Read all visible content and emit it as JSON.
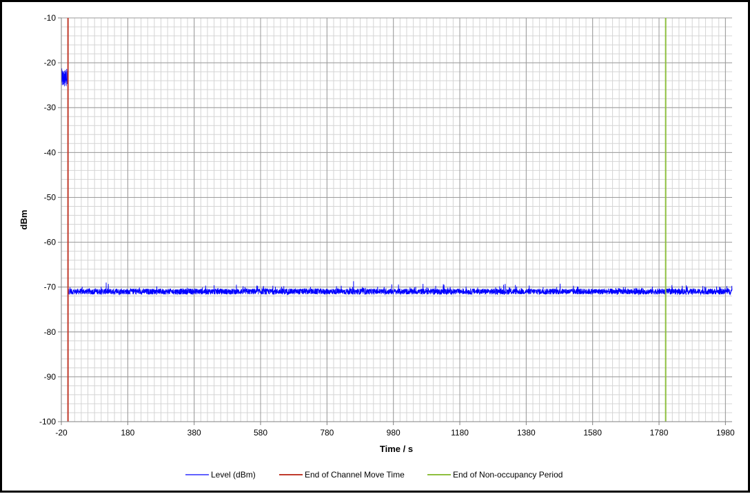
{
  "chart_data": {
    "type": "line",
    "xlabel": "Time / s",
    "ylabel": "dBm",
    "xlim": [
      -20,
      2000
    ],
    "ylim": [
      -100,
      -10
    ],
    "x_ticks": [
      -20,
      180,
      380,
      580,
      780,
      980,
      1180,
      1380,
      1580,
      1780,
      1980
    ],
    "y_ticks": [
      -10,
      -20,
      -30,
      -40,
      -50,
      -60,
      -70,
      -80,
      -90,
      -100
    ],
    "x_minor_step": 20,
    "y_minor_step": 2,
    "grid": true,
    "legend_position": "bottom",
    "series": [
      {
        "name": "Level (dBm)",
        "kind": "trace",
        "color": "#0000ff",
        "segments": [
          {
            "x": [
              -20,
              0
            ],
            "y_mean": -23.5,
            "y_min": -25.5,
            "y_max": -21.0
          },
          {
            "x": [
              0,
              2000
            ],
            "y_mean": -71.0,
            "y_min": -71.9,
            "y_max": -68.6,
            "peaks": [
              [
                115,
                -69.0
              ],
              [
                440,
                -69.6
              ],
              [
                650,
                -69.8
              ],
              [
                860,
                -68.7
              ],
              [
                975,
                -69.4
              ],
              [
                1130,
                -69.8
              ],
              [
                1760,
                -69.9
              ],
              [
                1820,
                -70.1
              ]
            ]
          }
        ]
      },
      {
        "name": "End of Channel Move Time",
        "kind": "vline",
        "x": 0,
        "color": "#c0392b"
      },
      {
        "name": "End of Non-occupancy Period",
        "kind": "vline",
        "x": 1800,
        "color": "#8dbf3d"
      }
    ]
  }
}
